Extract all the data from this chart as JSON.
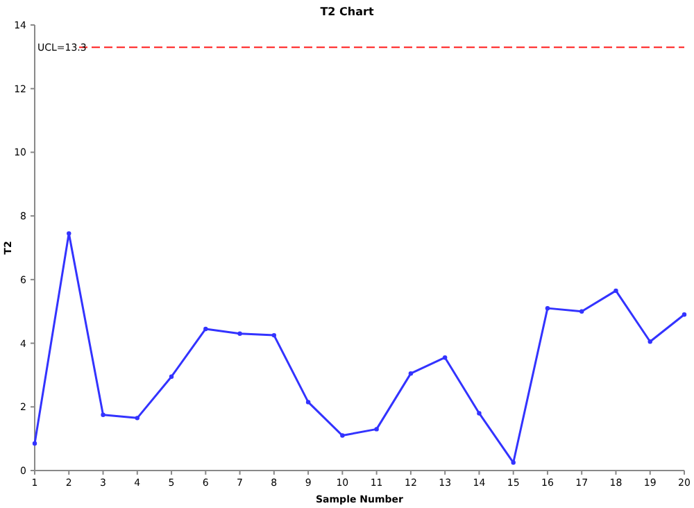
{
  "chart_data": {
    "type": "line",
    "title": "T2 Chart",
    "xlabel": "Sample Number",
    "ylabel": "T2",
    "x": [
      1,
      2,
      3,
      4,
      5,
      6,
      7,
      8,
      9,
      10,
      11,
      12,
      13,
      14,
      15,
      16,
      17,
      18,
      19,
      20
    ],
    "series": [
      {
        "color": "#3333ff",
        "values": [
          0.85,
          7.45,
          1.75,
          1.65,
          2.95,
          4.45,
          4.3,
          4.25,
          2.15,
          1.1,
          1.3,
          3.05,
          3.55,
          1.8,
          0.25,
          5.1,
          5.0,
          5.65,
          4.05,
          4.9
        ]
      }
    ],
    "xlim": [
      1,
      20
    ],
    "xticks": [
      1,
      2,
      3,
      4,
      5,
      6,
      7,
      8,
      9,
      10,
      11,
      12,
      13,
      14,
      15,
      16,
      17,
      18,
      19,
      20
    ],
    "ylim": [
      0,
      14
    ],
    "yticks": [
      0,
      2,
      4,
      6,
      8,
      10,
      12,
      14
    ],
    "ref_lines": [
      {
        "axis": "y",
        "value": 13.3,
        "label": "UCL=13.3",
        "color": "#ff3333",
        "line_style": "dashed"
      }
    ],
    "grid": false,
    "marker": "circle",
    "line_style": "solid"
  }
}
